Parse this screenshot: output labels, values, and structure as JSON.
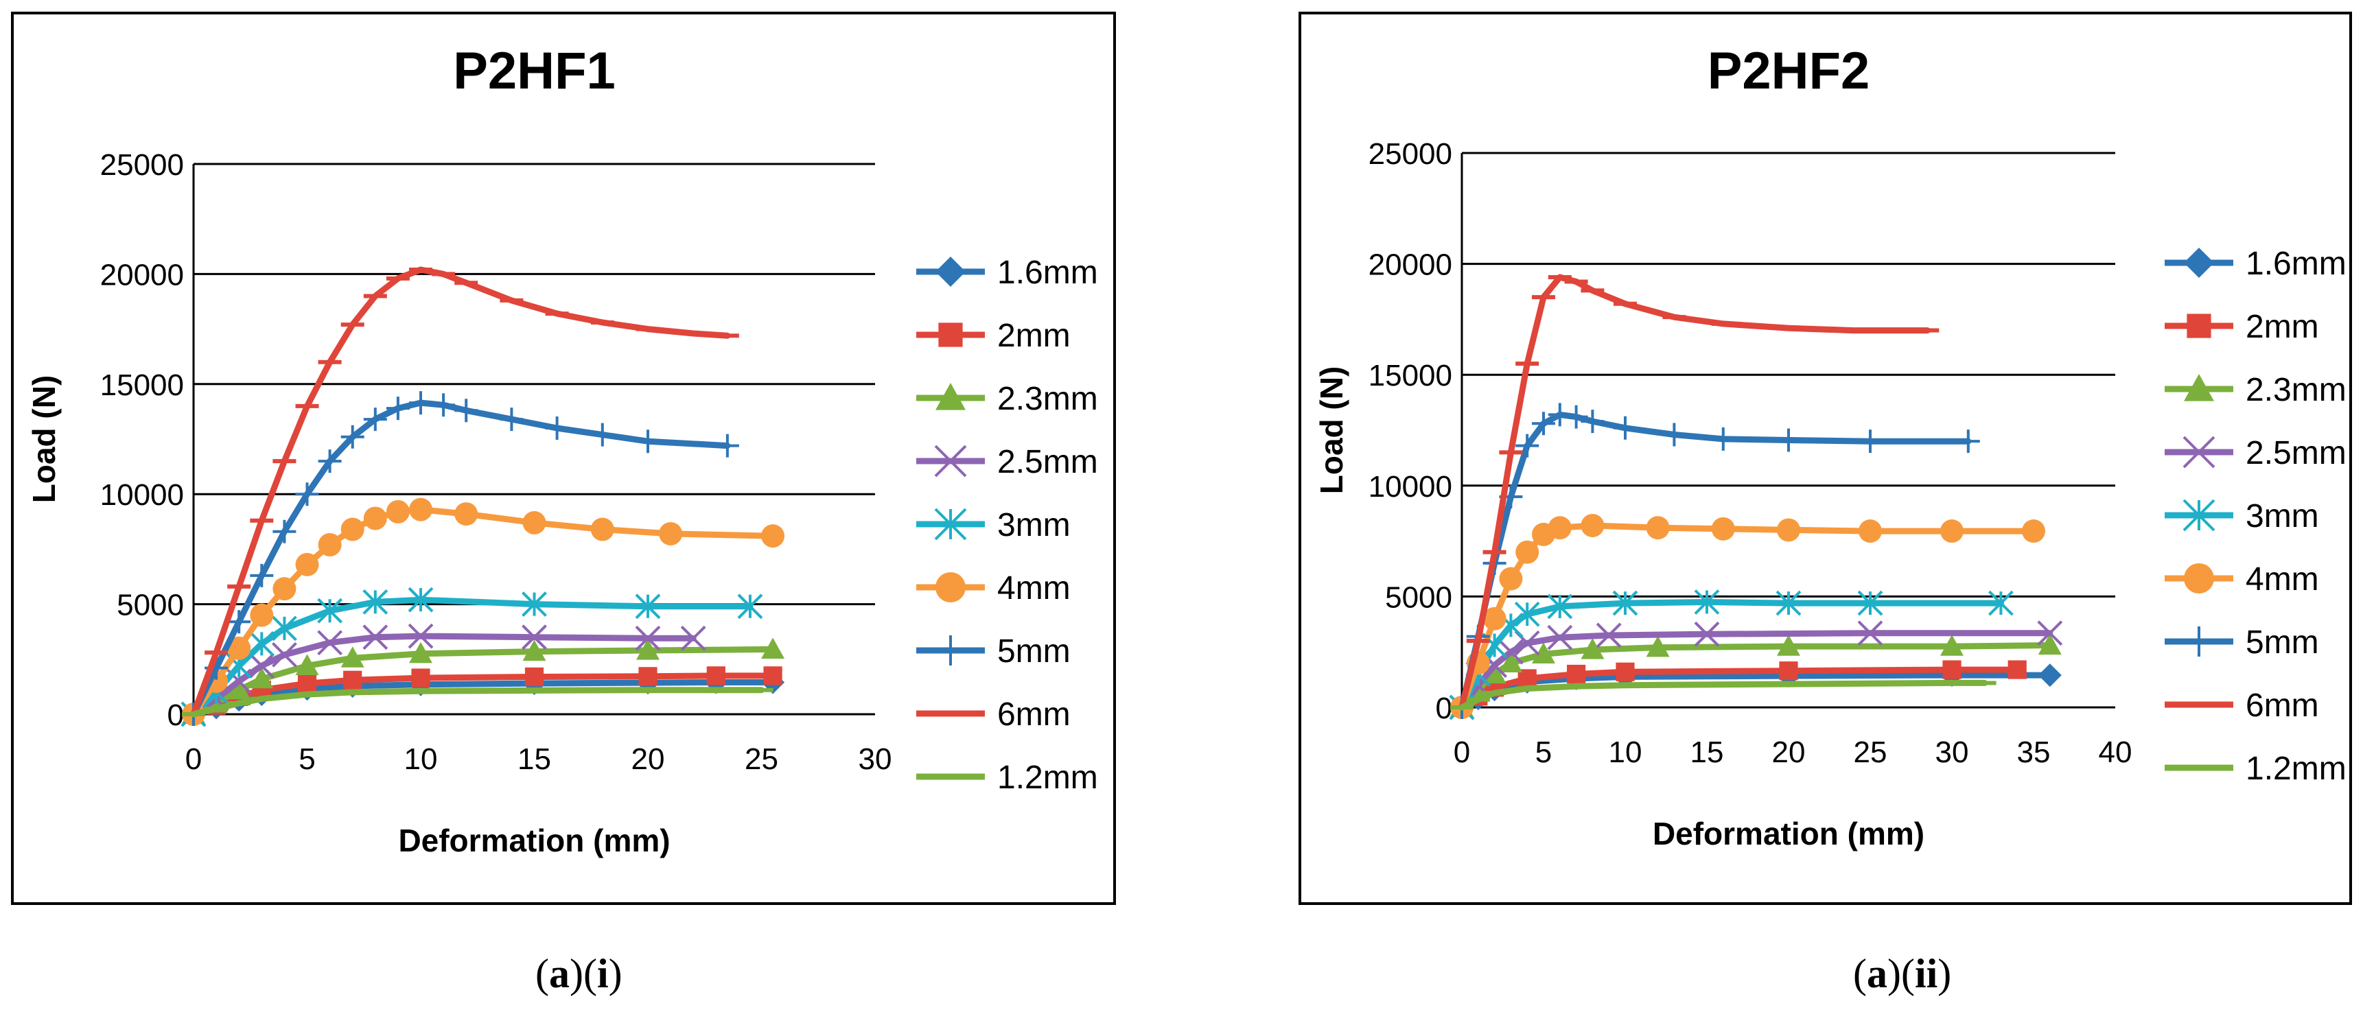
{
  "chart_data": [
    {
      "type": "line",
      "title": "P2HF1",
      "xlabel": "Deformation (mm)",
      "ylabel": "Load (N)",
      "xlim": [
        0,
        30
      ],
      "ylim": [
        0,
        25000
      ],
      "xticks": [
        0,
        5,
        10,
        15,
        20,
        25,
        30
      ],
      "yticks": [
        0,
        5000,
        10000,
        15000,
        20000,
        25000
      ],
      "x_tick_labels": [
        "0",
        "5",
        "10",
        "15",
        "20",
        "25",
        "30"
      ],
      "y_tick_labels": [
        "0",
        "5000",
        "10000",
        "15000",
        "20000",
        "25000"
      ],
      "grid": "horizontal",
      "legend": "right",
      "series": [
        {
          "name": "1.6mm",
          "color": "#2E75B6",
          "marker": "diamond",
          "points": [
            [
              0,
              0
            ],
            [
              1,
              300
            ],
            [
              2,
              650
            ],
            [
              3,
              900
            ],
            [
              5,
              1150
            ],
            [
              7,
              1280
            ],
            [
              10,
              1350
            ],
            [
              15,
              1400
            ],
            [
              20,
              1430
            ],
            [
              23,
              1450
            ],
            [
              25.5,
              1450
            ]
          ]
        },
        {
          "name": "2mm",
          "color": "#E0453A",
          "marker": "square",
          "points": [
            [
              0,
              0
            ],
            [
              1,
              400
            ],
            [
              2,
              800
            ],
            [
              3,
              1100
            ],
            [
              5,
              1400
            ],
            [
              7,
              1550
            ],
            [
              10,
              1650
            ],
            [
              15,
              1700
            ],
            [
              20,
              1720
            ],
            [
              23,
              1750
            ],
            [
              25.5,
              1750
            ]
          ]
        },
        {
          "name": "2.3mm",
          "color": "#7BB03C",
          "marker": "triangle",
          "points": [
            [
              0,
              0
            ],
            [
              1,
              500
            ],
            [
              2,
              1100
            ],
            [
              3,
              1600
            ],
            [
              5,
              2200
            ],
            [
              7,
              2550
            ],
            [
              10,
              2750
            ],
            [
              15,
              2850
            ],
            [
              20,
              2900
            ],
            [
              25.5,
              2950
            ]
          ]
        },
        {
          "name": "2.5mm",
          "color": "#8E65B3",
          "marker": "x",
          "points": [
            [
              0,
              0
            ],
            [
              1,
              700
            ],
            [
              2,
              1500
            ],
            [
              3,
              2200
            ],
            [
              4,
              2700
            ],
            [
              6,
              3250
            ],
            [
              8,
              3500
            ],
            [
              10,
              3550
            ],
            [
              15,
              3500
            ],
            [
              20,
              3450
            ],
            [
              22,
              3450
            ]
          ]
        },
        {
          "name": "3mm",
          "color": "#1FB0C8",
          "marker": "asterisk",
          "points": [
            [
              0,
              0
            ],
            [
              1,
              1000
            ],
            [
              2,
              2200
            ],
            [
              3,
              3200
            ],
            [
              4,
              3900
            ],
            [
              6,
              4700
            ],
            [
              8,
              5100
            ],
            [
              10,
              5200
            ],
            [
              15,
              5000
            ],
            [
              20,
              4900
            ],
            [
              24.5,
              4900
            ]
          ]
        },
        {
          "name": "4mm",
          "color": "#F79A3E",
          "marker": "circle",
          "points": [
            [
              0,
              0
            ],
            [
              1,
              1500
            ],
            [
              2,
              3000
            ],
            [
              3,
              4500
            ],
            [
              4,
              5700
            ],
            [
              5,
              6800
            ],
            [
              6,
              7700
            ],
            [
              7,
              8400
            ],
            [
              8,
              8900
            ],
            [
              9,
              9200
            ],
            [
              10,
              9300
            ],
            [
              12,
              9100
            ],
            [
              15,
              8700
            ],
            [
              18,
              8400
            ],
            [
              21,
              8200
            ],
            [
              25.5,
              8100
            ]
          ]
        },
        {
          "name": "5mm",
          "color": "#2E75B6",
          "marker": "plus",
          "points": [
            [
              0,
              0
            ],
            [
              1,
              2100
            ],
            [
              2,
              4200
            ],
            [
              3,
              6300
            ],
            [
              4,
              8300
            ],
            [
              5,
              10000
            ],
            [
              6,
              11500
            ],
            [
              7,
              12600
            ],
            [
              8,
              13400
            ],
            [
              9,
              13900
            ],
            [
              10,
              14150
            ],
            [
              11,
              14050
            ],
            [
              12,
              13800
            ],
            [
              14,
              13400
            ],
            [
              16,
              13000
            ],
            [
              18,
              12700
            ],
            [
              20,
              12400
            ],
            [
              23.5,
              12200
            ]
          ]
        },
        {
          "name": "6mm",
          "color": "#E0453A",
          "marker": "dash",
          "points": [
            [
              0,
              0
            ],
            [
              1,
              2800
            ],
            [
              2,
              5800
            ],
            [
              3,
              8800
            ],
            [
              4,
              11500
            ],
            [
              5,
              14000
            ],
            [
              6,
              16000
            ],
            [
              7,
              17700
            ],
            [
              8,
              19000
            ],
            [
              9,
              19800
            ],
            [
              10,
              20200
            ],
            [
              11,
              20000
            ],
            [
              12,
              19600
            ],
            [
              14,
              18800
            ],
            [
              16,
              18200
            ],
            [
              18,
              17800
            ],
            [
              20,
              17500
            ],
            [
              22,
              17300
            ],
            [
              23.5,
              17200
            ]
          ]
        },
        {
          "name": "1.2mm",
          "color": "#7BB03C",
          "marker": "dash",
          "points": [
            [
              0,
              0
            ],
            [
              1,
              250
            ],
            [
              2,
              500
            ],
            [
              3,
              700
            ],
            [
              5,
              900
            ],
            [
              7,
              1000
            ],
            [
              10,
              1050
            ],
            [
              15,
              1080
            ],
            [
              20,
              1100
            ],
            [
              25,
              1100
            ]
          ]
        }
      ]
    },
    {
      "type": "line",
      "title": "P2HF2",
      "xlabel": "Deformation (mm)",
      "ylabel": "Load (N)",
      "xlim": [
        0,
        40
      ],
      "ylim": [
        0,
        25000
      ],
      "xticks": [
        0,
        5,
        10,
        15,
        20,
        25,
        30,
        35,
        40
      ],
      "yticks": [
        0,
        5000,
        10000,
        15000,
        20000,
        25000
      ],
      "x_tick_labels": [
        "0",
        "5",
        "10",
        "15",
        "20",
        "25",
        "30",
        "35",
        "40"
      ],
      "y_tick_labels": [
        "0",
        "5000",
        "10000",
        "15000",
        "20000",
        "25000"
      ],
      "grid": "horizontal",
      "legend": "right",
      "series": [
        {
          "name": "1.6mm",
          "color": "#2E75B6",
          "marker": "diamond",
          "points": [
            [
              0,
              0
            ],
            [
              1,
              400
            ],
            [
              2,
              800
            ],
            [
              4,
              1150
            ],
            [
              7,
              1300
            ],
            [
              10,
              1380
            ],
            [
              20,
              1420
            ],
            [
              30,
              1450
            ],
            [
              36,
              1450
            ]
          ]
        },
        {
          "name": "2mm",
          "color": "#E0453A",
          "marker": "square",
          "points": [
            [
              0,
              0
            ],
            [
              1,
              500
            ],
            [
              2,
              900
            ],
            [
              4,
              1300
            ],
            [
              7,
              1500
            ],
            [
              10,
              1600
            ],
            [
              20,
              1650
            ],
            [
              30,
              1700
            ],
            [
              34,
              1700
            ]
          ]
        },
        {
          "name": "2.3mm",
          "color": "#7BB03C",
          "marker": "triangle",
          "points": [
            [
              0,
              0
            ],
            [
              1,
              800
            ],
            [
              2,
              1500
            ],
            [
              3,
              2000
            ],
            [
              5,
              2400
            ],
            [
              8,
              2600
            ],
            [
              12,
              2700
            ],
            [
              20,
              2750
            ],
            [
              30,
              2750
            ],
            [
              36,
              2800
            ]
          ]
        },
        {
          "name": "2.5mm",
          "color": "#8E65B3",
          "marker": "x",
          "points": [
            [
              0,
              0
            ],
            [
              1,
              1000
            ],
            [
              2,
              1900
            ],
            [
              3,
              2500
            ],
            [
              4,
              2900
            ],
            [
              6,
              3150
            ],
            [
              9,
              3250
            ],
            [
              15,
              3300
            ],
            [
              25,
              3350
            ],
            [
              36,
              3350
            ]
          ]
        },
        {
          "name": "3mm",
          "color": "#1FB0C8",
          "marker": "asterisk",
          "points": [
            [
              0,
              0
            ],
            [
              1,
              1500
            ],
            [
              2,
              2800
            ],
            [
              3,
              3700
            ],
            [
              4,
              4200
            ],
            [
              6,
              4550
            ],
            [
              10,
              4700
            ],
            [
              15,
              4750
            ],
            [
              20,
              4700
            ],
            [
              25,
              4700
            ],
            [
              33,
              4700
            ]
          ]
        },
        {
          "name": "4mm",
          "color": "#F79A3E",
          "marker": "circle",
          "points": [
            [
              0,
              0
            ],
            [
              1,
              2000
            ],
            [
              2,
              4000
            ],
            [
              3,
              5800
            ],
            [
              4,
              7000
            ],
            [
              5,
              7800
            ],
            [
              6,
              8100
            ],
            [
              8,
              8200
            ],
            [
              12,
              8100
            ],
            [
              16,
              8050
            ],
            [
              20,
              8000
            ],
            [
              25,
              7950
            ],
            [
              30,
              7950
            ],
            [
              35,
              7950
            ]
          ]
        },
        {
          "name": "5mm",
          "color": "#2E75B6",
          "marker": "plus",
          "points": [
            [
              0,
              0
            ],
            [
              1,
              3200
            ],
            [
              2,
              6500
            ],
            [
              3,
              9500
            ],
            [
              4,
              11800
            ],
            [
              5,
              12800
            ],
            [
              6,
              13200
            ],
            [
              7,
              13100
            ],
            [
              8,
              12900
            ],
            [
              10,
              12600
            ],
            [
              13,
              12300
            ],
            [
              16,
              12100
            ],
            [
              20,
              12050
            ],
            [
              25,
              12000
            ],
            [
              31,
              12000
            ]
          ]
        },
        {
          "name": "6mm",
          "color": "#E0453A",
          "marker": "dash",
          "points": [
            [
              0,
              0
            ],
            [
              1,
              3000
            ],
            [
              2,
              7000
            ],
            [
              3,
              11500
            ],
            [
              4,
              15500
            ],
            [
              5,
              18500
            ],
            [
              6,
              19400
            ],
            [
              7,
              19200
            ],
            [
              8,
              18800
            ],
            [
              10,
              18200
            ],
            [
              13,
              17600
            ],
            [
              16,
              17300
            ],
            [
              20,
              17100
            ],
            [
              24,
              17000
            ],
            [
              28.5,
              17000
            ]
          ]
        },
        {
          "name": "1.2mm",
          "color": "#7BB03C",
          "marker": "dash",
          "points": [
            [
              0,
              0
            ],
            [
              1,
              350
            ],
            [
              2,
              650
            ],
            [
              4,
              850
            ],
            [
              7,
              950
            ],
            [
              10,
              1000
            ],
            [
              20,
              1050
            ],
            [
              30,
              1100
            ],
            [
              32,
              1100
            ]
          ]
        }
      ]
    }
  ],
  "captions": [
    {
      "paren_a": "(",
      "letter_a": "a",
      "close_a": ")",
      "paren_b": "(",
      "numeral": "i",
      "close_b": ")"
    },
    {
      "paren_a": "(",
      "letter_a": "a",
      "close_a": ")",
      "paren_b": "(",
      "numeral": "ii",
      "close_b": ")"
    }
  ]
}
